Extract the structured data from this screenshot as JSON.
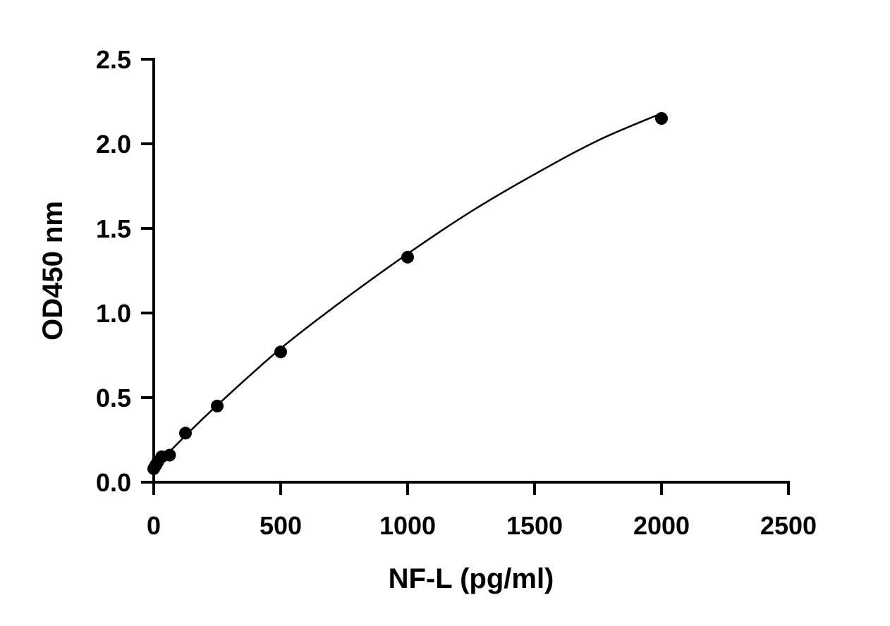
{
  "chart_data": {
    "type": "scatter",
    "title": "",
    "xlabel": "NF-L (pg/ml)",
    "ylabel": "OD450 nm",
    "xlim": [
      0,
      2500
    ],
    "ylim": [
      0,
      2.5
    ],
    "x_ticks": [
      0,
      500,
      1000,
      1500,
      2000,
      2500
    ],
    "x_tick_labels": [
      "0",
      "500",
      "1000",
      "1500",
      "2000",
      "2500"
    ],
    "y_ticks": [
      0,
      0.5,
      1.0,
      1.5,
      2.0,
      2.5
    ],
    "y_tick_labels": [
      "0.0",
      "0.5",
      "1.0",
      "1.5",
      "2.0",
      "2.5"
    ],
    "grid": false,
    "legend": "none",
    "series": [
      {
        "points": [
          {
            "x": 0,
            "y": 0.08
          },
          {
            "x": 7.8,
            "y": 0.1
          },
          {
            "x": 15.6,
            "y": 0.12
          },
          {
            "x": 31.25,
            "y": 0.15
          },
          {
            "x": 62.5,
            "y": 0.16
          },
          {
            "x": 125,
            "y": 0.29
          },
          {
            "x": 250,
            "y": 0.45
          },
          {
            "x": 500,
            "y": 0.77
          },
          {
            "x": 1000,
            "y": 1.33
          },
          {
            "x": 2000,
            "y": 2.15
          }
        ],
        "color": "#000000"
      }
    ],
    "fit_curve": {
      "type": "smooth-fit",
      "x_range": [
        0,
        2000
      ],
      "points": [
        {
          "x": 0,
          "y": 0.085
        },
        {
          "x": 31.25,
          "y": 0.13
        },
        {
          "x": 62.5,
          "y": 0.18
        },
        {
          "x": 125,
          "y": 0.275
        },
        {
          "x": 250,
          "y": 0.455
        },
        {
          "x": 500,
          "y": 0.79
        },
        {
          "x": 750,
          "y": 1.08
        },
        {
          "x": 1000,
          "y": 1.35
        },
        {
          "x": 1250,
          "y": 1.6
        },
        {
          "x": 1500,
          "y": 1.82
        },
        {
          "x": 1750,
          "y": 2.02
        },
        {
          "x": 2000,
          "y": 2.18
        }
      ],
      "color": "#000000"
    }
  }
}
